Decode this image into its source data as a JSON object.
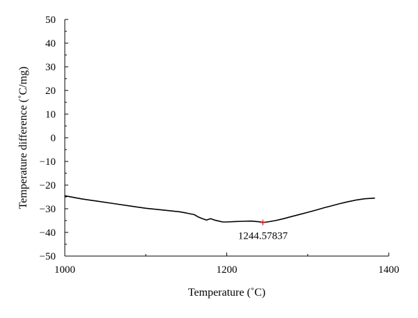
{
  "chart_data": {
    "type": "line",
    "title": "",
    "xlabel": "Temperature (˚C)",
    "ylabel": "Temperature difference (˚C/mg)",
    "xlim": [
      1000,
      1400
    ],
    "ylim": [
      -50,
      50
    ],
    "xticks": [
      1000,
      1200,
      1400
    ],
    "yticks": [
      50,
      40,
      30,
      20,
      10,
      0,
      -10,
      -20,
      -30,
      -40,
      -50
    ],
    "grid": false,
    "colors": {
      "line": "#000000",
      "marker": "#ff0000"
    },
    "series": [
      {
        "x": [
          1000,
          1020,
          1040,
          1060,
          1080,
          1100,
          1120,
          1140,
          1150,
          1160,
          1165,
          1170,
          1175,
          1180,
          1185,
          1190,
          1195,
          1200,
          1210,
          1220,
          1230,
          1240,
          1244.6,
          1250,
          1260,
          1270,
          1280,
          1290,
          1300,
          1310,
          1320,
          1330,
          1340,
          1350,
          1360,
          1370,
          1383
        ],
        "y": [
          -24.5,
          -25.8,
          -26.8,
          -27.8,
          -28.8,
          -29.8,
          -30.5,
          -31.2,
          -31.8,
          -32.5,
          -33.5,
          -34.2,
          -34.8,
          -34.2,
          -34.8,
          -35.2,
          -35.6,
          -35.6,
          -35.4,
          -35.3,
          -35.2,
          -35.5,
          -35.8,
          -35.6,
          -35.0,
          -34.2,
          -33.3,
          -32.4,
          -31.5,
          -30.6,
          -29.6,
          -28.7,
          -27.8,
          -27.0,
          -26.3,
          -25.8,
          -25.5
        ]
      }
    ],
    "annotation": {
      "x": 1244.57837,
      "y": -35.8,
      "label": "1244.57837"
    }
  }
}
